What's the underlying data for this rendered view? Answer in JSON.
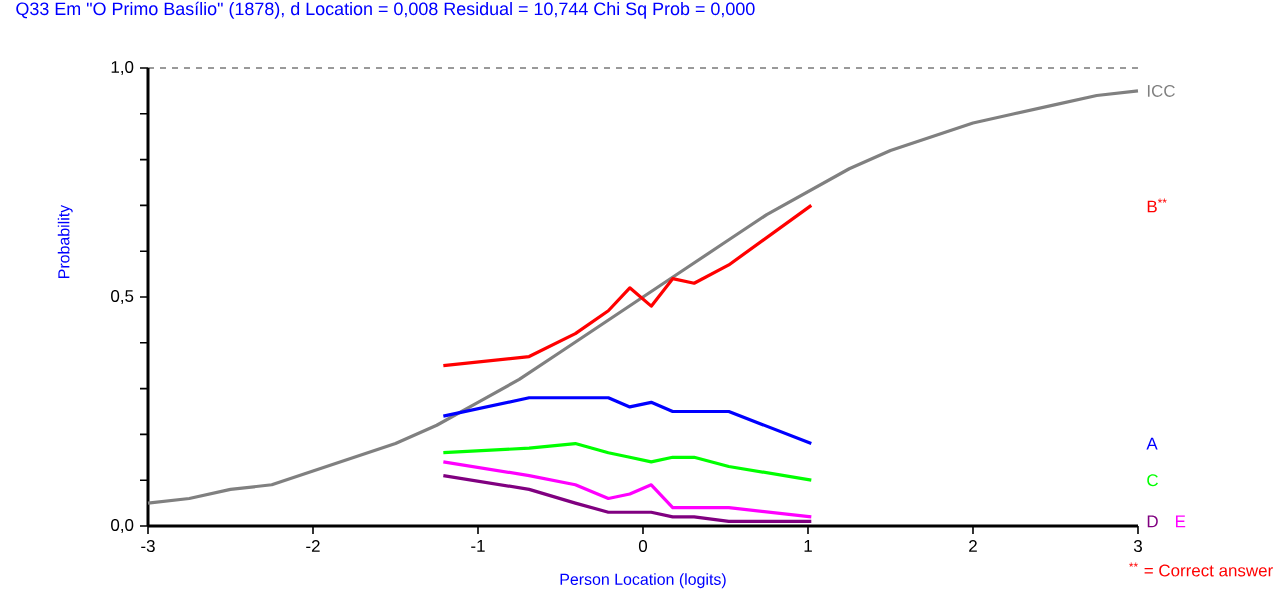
{
  "chart_data": {
    "type": "line",
    "title": "Q33    Em \"O Primo Basílio\" (1878), d    Location = 0,008    Residual = 10,744    Chi Sq Prob = 0,000",
    "xlabel": "Person Location (logits)",
    "ylabel": "Probability",
    "annotations": [
      "$^{**}$ = Correct answer"
    ],
    "x": [
      -1.21,
      -0.69,
      -0.41,
      -0.21,
      -0.08,
      0.05,
      0.18,
      0.31,
      0.52,
      1.02
    ],
    "xlim": [
      -3,
      3
    ],
    "ylim": [
      0,
      1
    ],
    "xticks": [
      -3,
      -2,
      -1,
      0,
      1,
      2,
      3
    ],
    "yticks": [
      {
        "value": 0,
        "label": "0,0"
      },
      {
        "value": 0.1,
        "label": null
      },
      {
        "value": 0.2,
        "label": null
      },
      {
        "value": 0.3,
        "label": null
      },
      {
        "value": 0.4,
        "label": null
      },
      {
        "value": 0.5,
        "label": "0,5"
      },
      {
        "value": 0.6,
        "label": null
      },
      {
        "value": 0.7,
        "label": null
      },
      {
        "value": 0.8,
        "label": null
      },
      {
        "value": 0.9,
        "label": null
      },
      {
        "value": 1,
        "label": "1,0"
      }
    ],
    "ref_lines": [
      {
        "axis": "y",
        "value": 1,
        "color": "#000000",
        "line_style": "dashed"
      }
    ],
    "series": [
      {
        "name": "ICC",
        "color": "#808080",
        "x": [
          -3,
          -2.75,
          -2.5,
          -2.25,
          -2,
          -1.75,
          -1.5,
          -1.25,
          -1,
          -0.75,
          -0.5,
          -0.25,
          0,
          0.25,
          0.5,
          0.75,
          1,
          1.25,
          1.5,
          1.75,
          2,
          2.25,
          2.5,
          2.75,
          3
        ],
        "values": [
          0.05,
          0.06,
          0.08,
          0.09,
          0.12,
          0.15,
          0.18,
          0.22,
          0.27,
          0.32,
          0.38,
          0.44,
          0.5,
          0.56,
          0.62,
          0.68,
          0.73,
          0.78,
          0.82,
          0.85,
          0.88,
          0.9,
          0.92,
          0.94,
          0.95
        ]
      },
      {
        "name": "B$^{**}$",
        "color": "#ff0000",
        "values": [
          0.35,
          0.37,
          0.42,
          0.47,
          0.52,
          0.48,
          0.54,
          0.53,
          0.57,
          0.7
        ]
      },
      {
        "name": "A",
        "color": "#0000ff",
        "values": [
          0.24,
          0.28,
          0.28,
          0.28,
          0.26,
          0.27,
          0.25,
          0.25,
          0.25,
          0.18
        ]
      },
      {
        "name": "C",
        "color": "#00ff00",
        "values": [
          0.16,
          0.17,
          0.18,
          0.16,
          0.15,
          0.14,
          0.15,
          0.15,
          0.13,
          0.1
        ]
      },
      {
        "name": "D",
        "color": "#800080",
        "values": [
          0.11,
          0.08,
          0.05,
          0.03,
          0.03,
          0.03,
          0.02,
          0.02,
          0.01,
          0.01
        ]
      },
      {
        "name": "E",
        "color": "#ff00ff",
        "values": [
          0.14,
          0.11,
          0.09,
          0.06,
          0.07,
          0.09,
          0.04,
          0.04,
          0.04,
          0.02
        ]
      }
    ]
  }
}
